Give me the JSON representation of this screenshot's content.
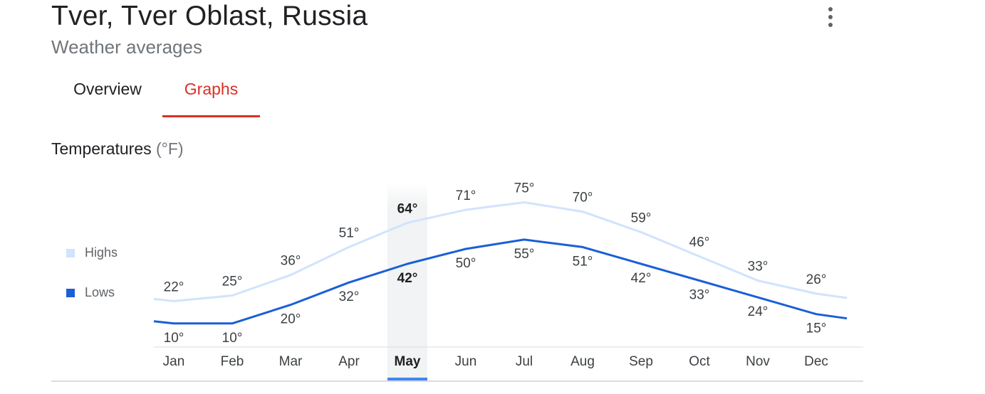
{
  "header": {
    "title": "Tver, Tver Oblast, Russia",
    "subtitle": "Weather averages"
  },
  "tabs": [
    {
      "label": "Overview",
      "active": false
    },
    {
      "label": "Graphs",
      "active": true
    }
  ],
  "section": {
    "title": "Temperatures",
    "unit": "(°F)"
  },
  "legend": {
    "highs": "Highs",
    "lows": "Lows"
  },
  "colors": {
    "highs": "#d2e3fc",
    "lows": "#1a5fd6",
    "accent": "#d93025",
    "selected_indicator": "#4285f4",
    "selected_band": "#f1f3f4"
  },
  "chart_data": {
    "type": "line",
    "categories": [
      "Jan",
      "Feb",
      "Mar",
      "Apr",
      "May",
      "Jun",
      "Jul",
      "Aug",
      "Sep",
      "Oct",
      "Nov",
      "Dec"
    ],
    "series": [
      {
        "name": "Highs",
        "values": [
          22,
          25,
          36,
          51,
          64,
          71,
          75,
          70,
          59,
          46,
          33,
          26
        ]
      },
      {
        "name": "Lows",
        "values": [
          10,
          10,
          20,
          32,
          42,
          50,
          55,
          51,
          42,
          33,
          24,
          15
        ]
      }
    ],
    "value_suffix": "°",
    "selected": "May",
    "ylim": [
      0,
      80
    ],
    "grid": false
  }
}
